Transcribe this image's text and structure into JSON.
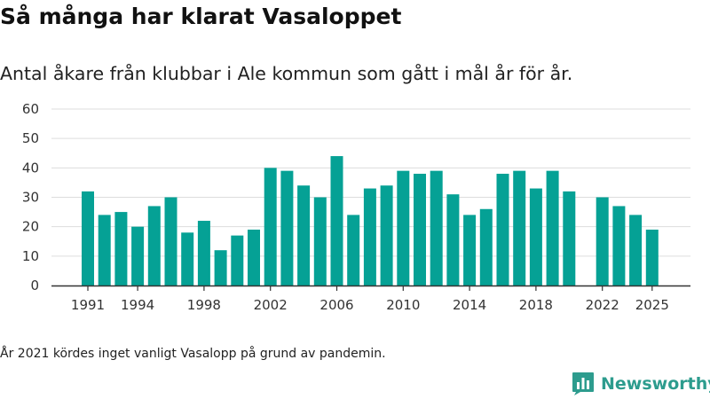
{
  "header": {
    "title": "Så många har klarat Vasaloppet",
    "subtitle": "Antal åkare från klubbar i Ale kommun som gått i mål år för år."
  },
  "footer": {
    "note": "År 2021 kördes inget vanligt Vasalopp på grund av pandemin.",
    "brand": "Newsworthy",
    "logo_icon": "bar-chart-icon"
  },
  "colors": {
    "bar": "#05a195",
    "grid": "#dddddd",
    "axis": "#333333",
    "brand": "#2d9c8e"
  },
  "chart_data": {
    "type": "bar",
    "title": "Så många har klarat Vasaloppet",
    "xlabel": "",
    "ylabel": "",
    "ylim": [
      0,
      60
    ],
    "yticks": [
      0,
      10,
      20,
      30,
      40,
      50,
      60
    ],
    "xtick_labels": [
      "1991",
      "1994",
      "1998",
      "2002",
      "2006",
      "2010",
      "2014",
      "2018",
      "2022",
      "2025"
    ],
    "grid": true,
    "categories": [
      "1991",
      "1992",
      "1993",
      "1994",
      "1995",
      "1996",
      "1997",
      "1998",
      "1999",
      "2000",
      "2001",
      "2002",
      "2003",
      "2004",
      "2005",
      "2006",
      "2007",
      "2008",
      "2009",
      "2010",
      "2011",
      "2012",
      "2013",
      "2014",
      "2015",
      "2016",
      "2017",
      "2018",
      "2019",
      "2020",
      "2021",
      "2022",
      "2023",
      "2024",
      "2025"
    ],
    "values": [
      32,
      24,
      25,
      20,
      27,
      30,
      18,
      22,
      12,
      17,
      19,
      40,
      39,
      34,
      30,
      44,
      24,
      33,
      34,
      39,
      38,
      39,
      31,
      24,
      26,
      38,
      39,
      33,
      39,
      32,
      null,
      30,
      27,
      24,
      19
    ]
  }
}
